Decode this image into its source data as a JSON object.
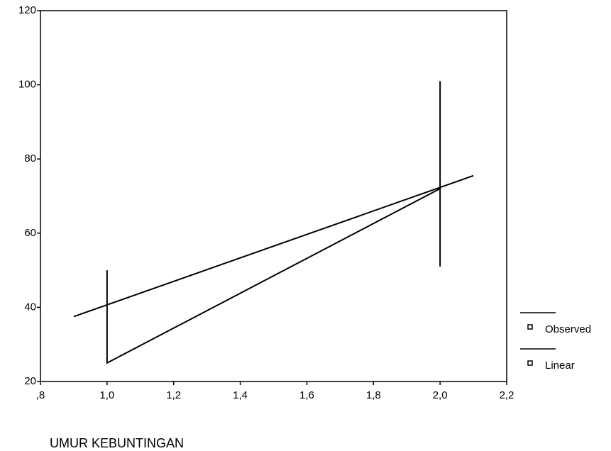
{
  "chart_data": {
    "type": "line",
    "x_label": "UMUR KEBUNTINGAN",
    "series": [
      {
        "name": "Observed",
        "color": "#000000",
        "x": [
          1.0,
          1.0,
          2.0,
          2.0,
          2.0
        ],
        "values": [
          50,
          25,
          72,
          101,
          51
        ]
      },
      {
        "name": "Linear",
        "color": "#000000",
        "x": [
          0.9,
          2.1
        ],
        "values": [
          37.5,
          75.5
        ]
      }
    ],
    "xlim": [
      0.8,
      2.2
    ],
    "xticks": [
      {
        "value": 0.8,
        "label": ",8"
      },
      {
        "value": 1.0,
        "label": "1,0"
      },
      {
        "value": 1.2,
        "label": "1,2"
      },
      {
        "value": 1.4,
        "label": "1,4"
      },
      {
        "value": 1.6,
        "label": "1,6"
      },
      {
        "value": 1.8,
        "label": "1,8"
      },
      {
        "value": 2.0,
        "label": "2,0"
      },
      {
        "value": 2.2,
        "label": "2,2"
      }
    ],
    "ylim": [
      20,
      120
    ],
    "yticks": [
      20,
      40,
      60,
      80,
      100,
      120
    ],
    "grid": false,
    "legend": "right"
  }
}
